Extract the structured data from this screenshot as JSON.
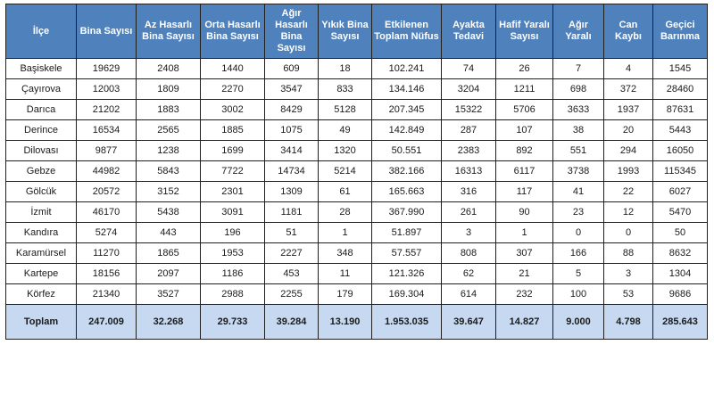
{
  "headers": [
    "İlçe",
    "Bina Sayısı",
    "Az Hasarlı Bina Sayısı",
    "Orta Hasarlı Bina Sayısı",
    "Ağır Hasarlı Bina Sayısı",
    "Yıkık Bina Sayısı",
    "Etkilenen Toplam Nüfus",
    "Ayakta Tedavi",
    "Hafif Yaralı Sayısı",
    "Ağır Yaralı",
    "Can Kaybı",
    "Geçici Barınma"
  ],
  "rows": [
    [
      "Başiskele",
      "19629",
      "2408",
      "1440",
      "609",
      "18",
      "102.241",
      "74",
      "26",
      "7",
      "4",
      "1545"
    ],
    [
      "Çayırova",
      "12003",
      "1809",
      "2270",
      "3547",
      "833",
      "134.146",
      "3204",
      "1211",
      "698",
      "372",
      "28460"
    ],
    [
      "Darıca",
      "21202",
      "1883",
      "3002",
      "8429",
      "5128",
      "207.345",
      "15322",
      "5706",
      "3633",
      "1937",
      "87631"
    ],
    [
      "Derince",
      "16534",
      "2565",
      "1885",
      "1075",
      "49",
      "142.849",
      "287",
      "107",
      "38",
      "20",
      "5443"
    ],
    [
      "Dilovası",
      "9877",
      "1238",
      "1699",
      "3414",
      "1320",
      "50.551",
      "2383",
      "892",
      "551",
      "294",
      "16050"
    ],
    [
      "Gebze",
      "44982",
      "5843",
      "7722",
      "14734",
      "5214",
      "382.166",
      "16313",
      "6117",
      "3738",
      "1993",
      "115345"
    ],
    [
      "Gölcük",
      "20572",
      "3152",
      "2301",
      "1309",
      "61",
      "165.663",
      "316",
      "117",
      "41",
      "22",
      "6027"
    ],
    [
      "İzmit",
      "46170",
      "5438",
      "3091",
      "1181",
      "28",
      "367.990",
      "261",
      "90",
      "23",
      "12",
      "5470"
    ],
    [
      "Kandıra",
      "5274",
      "443",
      "196",
      "51",
      "1",
      "51.897",
      "3",
      "1",
      "0",
      "0",
      "50"
    ],
    [
      "Karamürsel",
      "11270",
      "1865",
      "1953",
      "2227",
      "348",
      "57.557",
      "808",
      "307",
      "166",
      "88",
      "8632"
    ],
    [
      "Kartepe",
      "18156",
      "2097",
      "1186",
      "453",
      "11",
      "121.326",
      "62",
      "21",
      "5",
      "3",
      "1304"
    ],
    [
      "Körfez",
      "21340",
      "3527",
      "2988",
      "2255",
      "179",
      "169.304",
      "614",
      "232",
      "100",
      "53",
      "9686"
    ]
  ],
  "totals": [
    "Toplam",
    "247.009",
    "32.268",
    "29.733",
    "39.284",
    "13.190",
    "1.953.035",
    "39.647",
    "14.827",
    "9.000",
    "4.798",
    "285.643"
  ],
  "colors": {
    "header_bg": "#4f81bd",
    "header_text": "#ffffff",
    "total_bg": "#c6d9f1",
    "border": "#1f1f1f"
  }
}
